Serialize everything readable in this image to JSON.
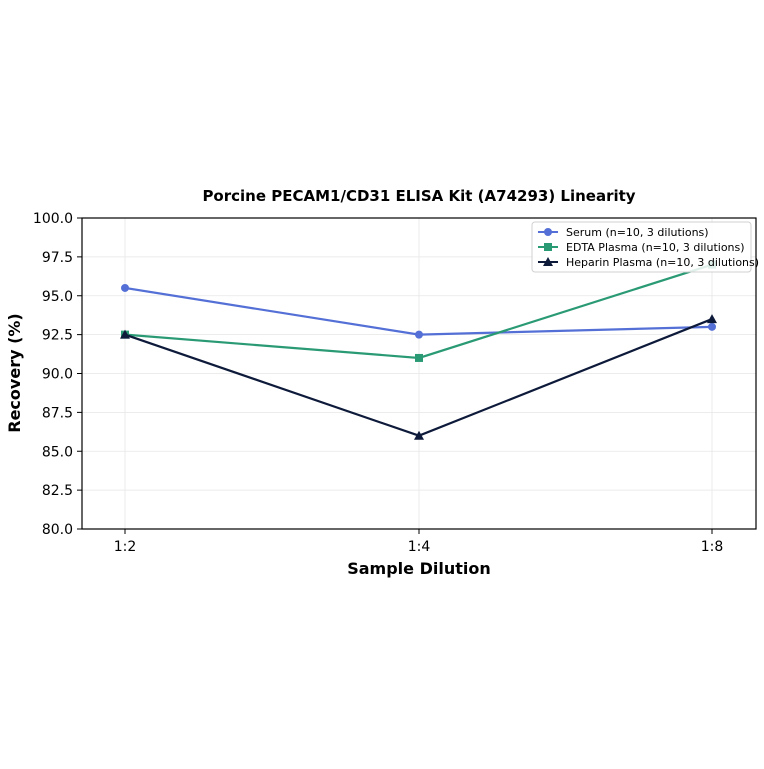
{
  "chart_data": {
    "type": "line",
    "title": "Porcine PECAM1/CD31 ELISA Kit (A74293) Linearity",
    "xlabel": "Sample Dilution",
    "ylabel": "Recovery (%)",
    "categories": [
      "1:2",
      "1:4",
      "1:8"
    ],
    "ylim": [
      80.0,
      100.0
    ],
    "yticks": [
      "80.0",
      "82.5",
      "85.0",
      "87.5",
      "90.0",
      "92.5",
      "95.0",
      "97.5",
      "100.0"
    ],
    "grid": true,
    "legend_position": "top-right",
    "series": [
      {
        "name": "Serum (n=10, 3 dilutions)",
        "values": [
          95.5,
          92.5,
          93.0
        ],
        "color": "#5470d6",
        "marker": "circle"
      },
      {
        "name": "EDTA Plasma (n=10, 3 dilutions)",
        "values": [
          92.5,
          91.0,
          97.0
        ],
        "color": "#2a9a74",
        "marker": "square"
      },
      {
        "name": "Heparin Plasma (n=10, 3 dilutions)",
        "values": [
          92.5,
          86.0,
          93.5
        ],
        "color": "#0e1a3a",
        "marker": "triangle"
      }
    ]
  }
}
